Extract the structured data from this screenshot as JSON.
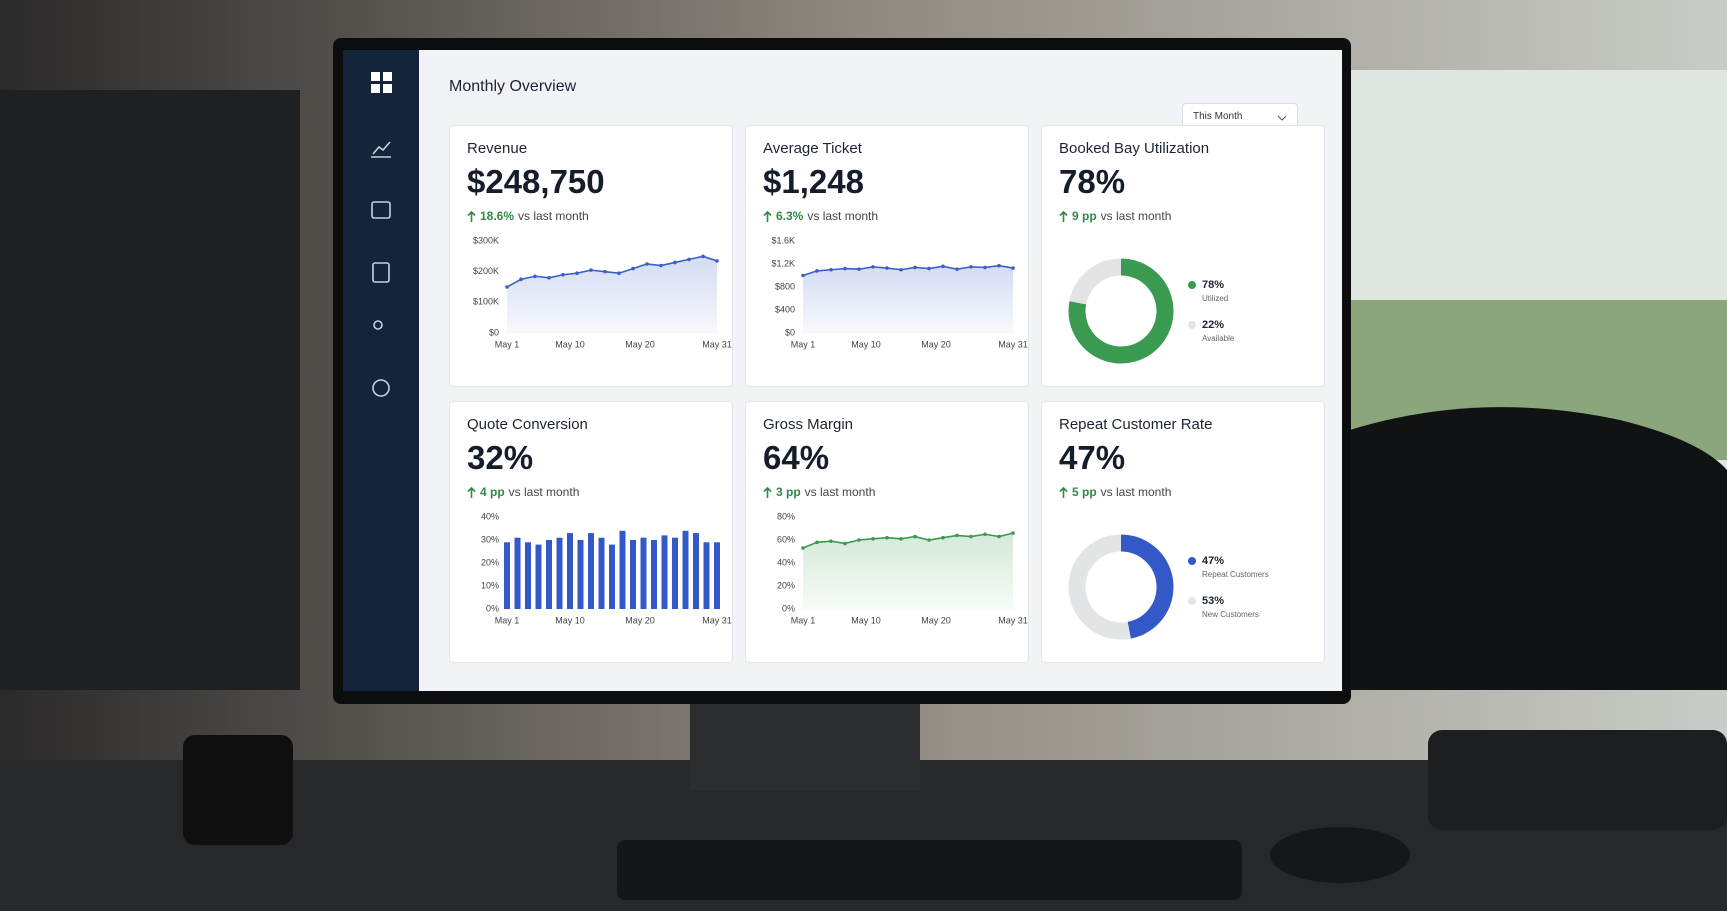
{
  "header": {
    "title": "Monthly Overview",
    "period": "This Month"
  },
  "cards": [
    {
      "title": "Revenue",
      "value": "$248,750",
      "change": "18.6%",
      "change_text": "vs last month",
      "chart": {
        "type": "line",
        "color": "#3a5fc8",
        "grid": false,
        "xlim": [
          1,
          31
        ],
        "x": [
          1,
          3,
          5,
          7,
          9,
          11,
          13,
          15,
          17,
          19,
          21,
          23,
          25,
          27,
          29,
          31
        ],
        "values": [
          150000,
          175000,
          185000,
          180000,
          190000,
          195000,
          205000,
          200000,
          195000,
          210000,
          225000,
          220000,
          230000,
          240000,
          250000,
          235000
        ],
        "xticks": [
          {
            "value": 1,
            "label": "May 1"
          },
          {
            "value": 10,
            "label": "May 10"
          },
          {
            "value": 20,
            "label": "May 20"
          },
          {
            "value": 31,
            "label": "May 31"
          }
        ],
        "ylim": [
          0,
          300000
        ],
        "yticks": [
          {
            "value": 0,
            "label": "$0"
          },
          {
            "value": 100000,
            "label": "$100K"
          },
          {
            "value": 200000,
            "label": "$200K"
          },
          {
            "value": 300000,
            "label": "$300K"
          }
        ]
      }
    },
    {
      "title": "Average Ticket",
      "value": "$1,248",
      "change": "6.3%",
      "change_text": "vs last month",
      "chart": {
        "type": "line",
        "color": "#3a5fc8",
        "grid": false,
        "xlim": [
          1,
          31
        ],
        "x": [
          1,
          3,
          5,
          7,
          9,
          11,
          13,
          15,
          17,
          19,
          21,
          23,
          25,
          27,
          29,
          31
        ],
        "values": [
          1000,
          1080,
          1100,
          1120,
          1110,
          1150,
          1130,
          1100,
          1140,
          1120,
          1160,
          1110,
          1150,
          1140,
          1170,
          1130
        ],
        "xticks": [
          {
            "value": 1,
            "label": "May 1"
          },
          {
            "value": 10,
            "label": "May 10"
          },
          {
            "value": 20,
            "label": "May 20"
          },
          {
            "value": 31,
            "label": "May 31"
          }
        ],
        "ylim": [
          0,
          1600
        ],
        "yticks": [
          {
            "value": 0,
            "label": "$0"
          },
          {
            "value": 400,
            "label": "$400"
          },
          {
            "value": 800,
            "label": "$800"
          },
          {
            "value": 1200,
            "label": "$1.2K"
          },
          {
            "value": 1600,
            "label": "$1.6K"
          }
        ]
      }
    },
    {
      "title": "Booked Bay Utilization",
      "value": "78%",
      "change": "9 pp",
      "change_text": "vs last month",
      "chart": {
        "type": "pie",
        "categories": [
          "Utilized",
          "Available"
        ],
        "values": [
          78,
          22
        ],
        "value_labels": [
          "78%",
          "22%"
        ],
        "colors": [
          "#3a9a4f",
          "#e3e4e6"
        ]
      }
    },
    {
      "title": "Quote Conversion",
      "value": "32%",
      "change": "4 pp",
      "change_text": "vs last month",
      "chart": {
        "type": "bar",
        "color": "#3358c8",
        "grid": false,
        "xlim": [
          1,
          31
        ],
        "x": [
          1,
          2.5,
          4,
          5.5,
          7,
          8.5,
          10,
          11.5,
          13,
          14.5,
          16,
          17.5,
          19,
          20.5,
          22,
          23.5,
          25,
          26.5,
          28,
          29.5,
          31
        ],
        "values": [
          29,
          31,
          29,
          28,
          30,
          31,
          33,
          30,
          33,
          31,
          28,
          34,
          30,
          31,
          30,
          32,
          31,
          34,
          33,
          29,
          29
        ],
        "xticks": [
          {
            "value": 1,
            "label": "May 1"
          },
          {
            "value": 10,
            "label": "May 10"
          },
          {
            "value": 20,
            "label": "May 20"
          },
          {
            "value": 31,
            "label": "May 31"
          }
        ],
        "ylim": [
          0,
          40
        ],
        "yticks": [
          {
            "value": 0,
            "label": "0%"
          },
          {
            "value": 10,
            "label": "10%"
          },
          {
            "value": 20,
            "label": "20%"
          },
          {
            "value": 30,
            "label": "30%"
          },
          {
            "value": 40,
            "label": "40%"
          }
        ]
      }
    },
    {
      "title": "Gross Margin",
      "value": "64%",
      "change": "3 pp",
      "change_text": "vs last month",
      "chart": {
        "type": "line",
        "color": "#3a9a4f",
        "grid": false,
        "xlim": [
          1,
          31
        ],
        "x": [
          1,
          3,
          5,
          7,
          9,
          11,
          13,
          15,
          17,
          19,
          21,
          23,
          25,
          27,
          29,
          31
        ],
        "values": [
          53,
          58,
          59,
          57,
          60,
          61,
          62,
          61,
          63,
          60,
          62,
          64,
          63,
          65,
          63,
          66
        ],
        "xticks": [
          {
            "value": 1,
            "label": "May 1"
          },
          {
            "value": 10,
            "label": "May 10"
          },
          {
            "value": 20,
            "label": "May 20"
          },
          {
            "value": 31,
            "label": "May 31"
          }
        ],
        "ylim": [
          0,
          80
        ],
        "yticks": [
          {
            "value": 0,
            "label": "0%"
          },
          {
            "value": 20,
            "label": "20%"
          },
          {
            "value": 40,
            "label": "40%"
          },
          {
            "value": 60,
            "label": "60%"
          },
          {
            "value": 80,
            "label": "80%"
          }
        ]
      }
    },
    {
      "title": "Repeat Customer Rate",
      "value": "47%",
      "change": "5 pp",
      "change_text": "vs last month",
      "chart": {
        "type": "pie",
        "categories": [
          "Repeat Customers",
          "New Customers"
        ],
        "values": [
          47,
          53
        ],
        "value_labels": [
          "47%",
          "53%"
        ],
        "colors": [
          "#3358c8",
          "#e3e4e6"
        ]
      }
    }
  ]
}
